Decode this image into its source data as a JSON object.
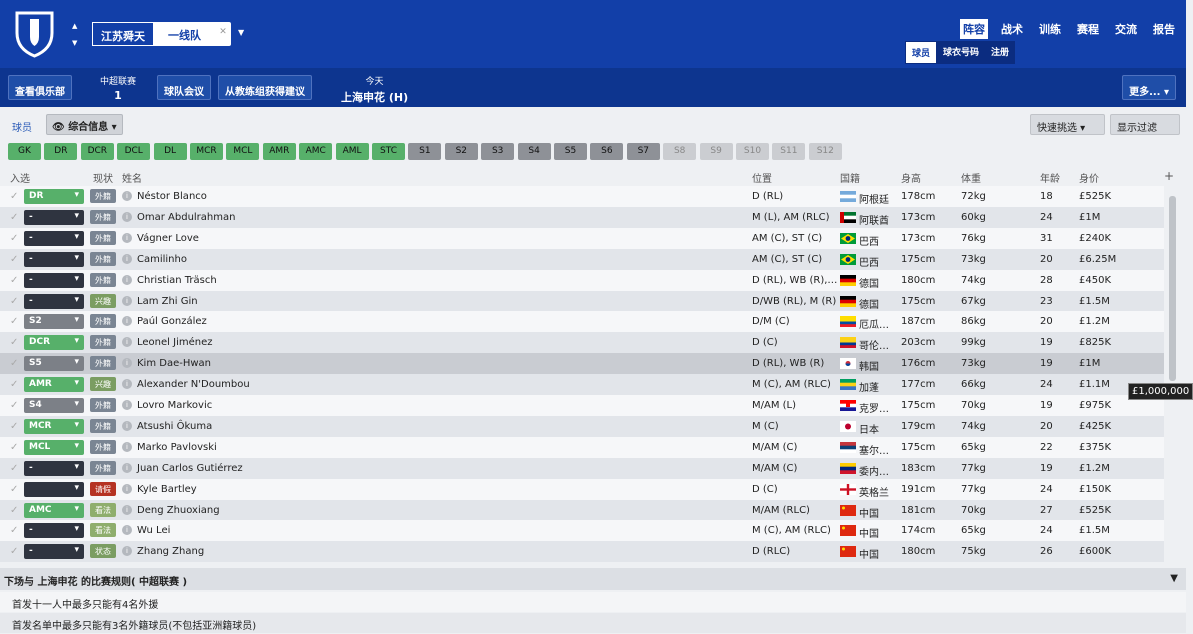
{
  "club": "江苏舜天",
  "team": "一线队",
  "nav": [
    "阵容",
    "战术",
    "训练",
    "赛程",
    "交流",
    "报告"
  ],
  "subnav": [
    "球员",
    "球衣号码",
    "注册"
  ],
  "buttons": {
    "club_info": "查看俱乐部",
    "meeting": "球队会议",
    "advice": "从教练组获得建议",
    "more": "更多..."
  },
  "league": {
    "name": "中超联赛",
    "pos": "1"
  },
  "today": {
    "label": "今天",
    "match": "上海申花 (H)"
  },
  "toolbar": {
    "players": "球员",
    "view": "综合信息",
    "quick": "快速挑选",
    "filter": "显示过滤"
  },
  "positions": [
    {
      "l": "GK",
      "t": "g"
    },
    {
      "l": "DR",
      "t": "g"
    },
    {
      "l": "DCR",
      "t": "g"
    },
    {
      "l": "DCL",
      "t": "g"
    },
    {
      "l": "DL",
      "t": "g"
    },
    {
      "l": "MCR",
      "t": "g"
    },
    {
      "l": "MCL",
      "t": "g"
    },
    {
      "l": "AMR",
      "t": "g"
    },
    {
      "l": "AMC",
      "t": "g"
    },
    {
      "l": "AML",
      "t": "g"
    },
    {
      "l": "STC",
      "t": "g"
    },
    {
      "l": "S1",
      "t": "s"
    },
    {
      "l": "S2",
      "t": "s"
    },
    {
      "l": "S3",
      "t": "s"
    },
    {
      "l": "S4",
      "t": "s"
    },
    {
      "l": "S5",
      "t": "s"
    },
    {
      "l": "S6",
      "t": "s"
    },
    {
      "l": "S7",
      "t": "s"
    },
    {
      "l": "S8",
      "t": "l"
    },
    {
      "l": "S9",
      "t": "l"
    },
    {
      "l": "S10",
      "t": "l"
    },
    {
      "l": "S11",
      "t": "l"
    },
    {
      "l": "S12",
      "t": "l"
    }
  ],
  "headers": {
    "sel": "入选",
    "status": "现状",
    "name": "姓名",
    "pos": "位置",
    "nat": "国籍",
    "height": "身高",
    "weight": "体重",
    "age": "年龄",
    "value": "身价"
  },
  "players": [
    {
      "s": "DR",
      "c": "g",
      "st": "外籍",
      "sc": "f",
      "n": "Néstor Blanco",
      "p": "D (RL)",
      "f": "argentina",
      "nat": "阿根廷",
      "h": "178cm",
      "w": "72kg",
      "a": "18",
      "v": "£525K"
    },
    {
      "s": "-",
      "c": "d",
      "st": "外籍",
      "sc": "f",
      "n": "Omar Abdulrahman",
      "p": "M (L), AM (RLC)",
      "f": "uae",
      "nat": "阿联酋",
      "h": "173cm",
      "w": "60kg",
      "a": "24",
      "v": "£1M"
    },
    {
      "s": "-",
      "c": "d",
      "st": "外籍",
      "sc": "f",
      "n": "Vágner Love",
      "p": "AM (C), ST (C)",
      "f": "brazil",
      "nat": "巴西",
      "h": "173cm",
      "w": "76kg",
      "a": "31",
      "v": "£240K"
    },
    {
      "s": "-",
      "c": "d",
      "st": "外籍",
      "sc": "f",
      "n": "Camilinho",
      "p": "AM (C), ST (C)",
      "f": "brazil",
      "nat": "巴西",
      "h": "175cm",
      "w": "73kg",
      "a": "20",
      "v": "£6.25M"
    },
    {
      "s": "-",
      "c": "d",
      "st": "外籍",
      "sc": "f",
      "n": "Christian Träsch",
      "p": "D (RL), WB (R),…",
      "f": "germany",
      "nat": "德国",
      "h": "180cm",
      "w": "74kg",
      "a": "28",
      "v": "£450K"
    },
    {
      "s": "-",
      "c": "d",
      "st": "兴趣",
      "sc": "i",
      "n": "Lam Zhi Gin",
      "p": "D/WB (RL), M (R)",
      "f": "germany",
      "nat": "德国",
      "h": "175cm",
      "w": "67kg",
      "a": "23",
      "v": "£1.5M"
    },
    {
      "s": "S2",
      "c": "x",
      "st": "外籍",
      "sc": "f",
      "n": "Paúl González",
      "p": "D/M (C)",
      "f": "ecuador",
      "nat": "厄瓜…",
      "h": "187cm",
      "w": "86kg",
      "a": "20",
      "v": "£1.2M"
    },
    {
      "s": "DCR",
      "c": "g",
      "st": "外籍",
      "sc": "f",
      "n": "Leonel Jiménez",
      "p": "D (C)",
      "f": "colombia",
      "nat": "哥伦…",
      "h": "203cm",
      "w": "99kg",
      "a": "19",
      "v": "£825K"
    },
    {
      "s": "S5",
      "c": "x",
      "st": "外籍",
      "sc": "f",
      "n": "Kim Dae-Hwan",
      "p": "D (RL), WB (R)",
      "f": "korea",
      "nat": "韩国",
      "h": "176cm",
      "w": "73kg",
      "a": "19",
      "v": "£1M"
    },
    {
      "s": "AMR",
      "c": "g",
      "st": "兴趣",
      "sc": "i",
      "n": "Alexander N'Doumbou",
      "p": "M (C), AM (RLC)",
      "f": "gabon",
      "nat": "加蓬",
      "h": "177cm",
      "w": "66kg",
      "a": "24",
      "v": "£1.1M"
    },
    {
      "s": "S4",
      "c": "x",
      "st": "外籍",
      "sc": "f",
      "n": "Lovro Markovic",
      "p": "M/AM (L)",
      "f": "croatia",
      "nat": "克罗…",
      "h": "175cm",
      "w": "70kg",
      "a": "19",
      "v": "£975K"
    },
    {
      "s": "MCR",
      "c": "g",
      "st": "外籍",
      "sc": "f",
      "n": "Atsushi Ôkuma",
      "p": "M (C)",
      "f": "japan",
      "nat": "日本",
      "h": "179cm",
      "w": "74kg",
      "a": "20",
      "v": "£425K"
    },
    {
      "s": "MCL",
      "c": "g",
      "st": "外籍",
      "sc": "f",
      "n": "Marko Pavlovski",
      "p": "M/AM (C)",
      "f": "serbia",
      "nat": "塞尔…",
      "h": "175cm",
      "w": "65kg",
      "a": "22",
      "v": "£375K"
    },
    {
      "s": "-",
      "c": "d",
      "st": "外籍",
      "sc": "f",
      "n": "Juan Carlos Gutiérrez",
      "p": "M/AM (C)",
      "f": "venezuela",
      "nat": "委内…",
      "h": "183cm",
      "w": "77kg",
      "a": "19",
      "v": "£1.2M"
    },
    {
      "s": "",
      "c": "d",
      "st": "请假",
      "sc": "r",
      "n": "Kyle Bartley",
      "p": "D (C)",
      "f": "england",
      "nat": "英格兰",
      "h": "191cm",
      "w": "77kg",
      "a": "24",
      "v": "£150K"
    },
    {
      "s": "AMC",
      "c": "g",
      "st": "看法",
      "sc": "w",
      "n": "Deng Zhuoxiang",
      "p": "M/AM (RLC)",
      "f": "china",
      "nat": "中国",
      "h": "181cm",
      "w": "70kg",
      "a": "27",
      "v": "£525K"
    },
    {
      "s": "-",
      "c": "d",
      "st": "看法",
      "sc": "w",
      "n": "Wu Lei",
      "p": "M (C), AM (RLC)",
      "f": "china",
      "nat": "中国",
      "h": "174cm",
      "w": "65kg",
      "a": "24",
      "v": "£1.5M"
    },
    {
      "s": "-",
      "c": "d",
      "st": "状态",
      "sc": "i",
      "n": "Zhang Zhang",
      "p": "D (RLC)",
      "f": "china",
      "nat": "中国",
      "h": "180cm",
      "w": "75kg",
      "a": "26",
      "v": "£600K"
    }
  ],
  "tooltip": "£1,000,000",
  "rules": {
    "title": "下场与 上海申花 的比赛规则( 中超联赛 )",
    "items": [
      "首发十一人中最多只能有4名外援",
      "首发名单中最多只能有3名外籍球员(不包括亚洲籍球员)"
    ]
  },
  "colors": {
    "header_blue": "#123fa8",
    "selected_green": "#57b06a"
  }
}
